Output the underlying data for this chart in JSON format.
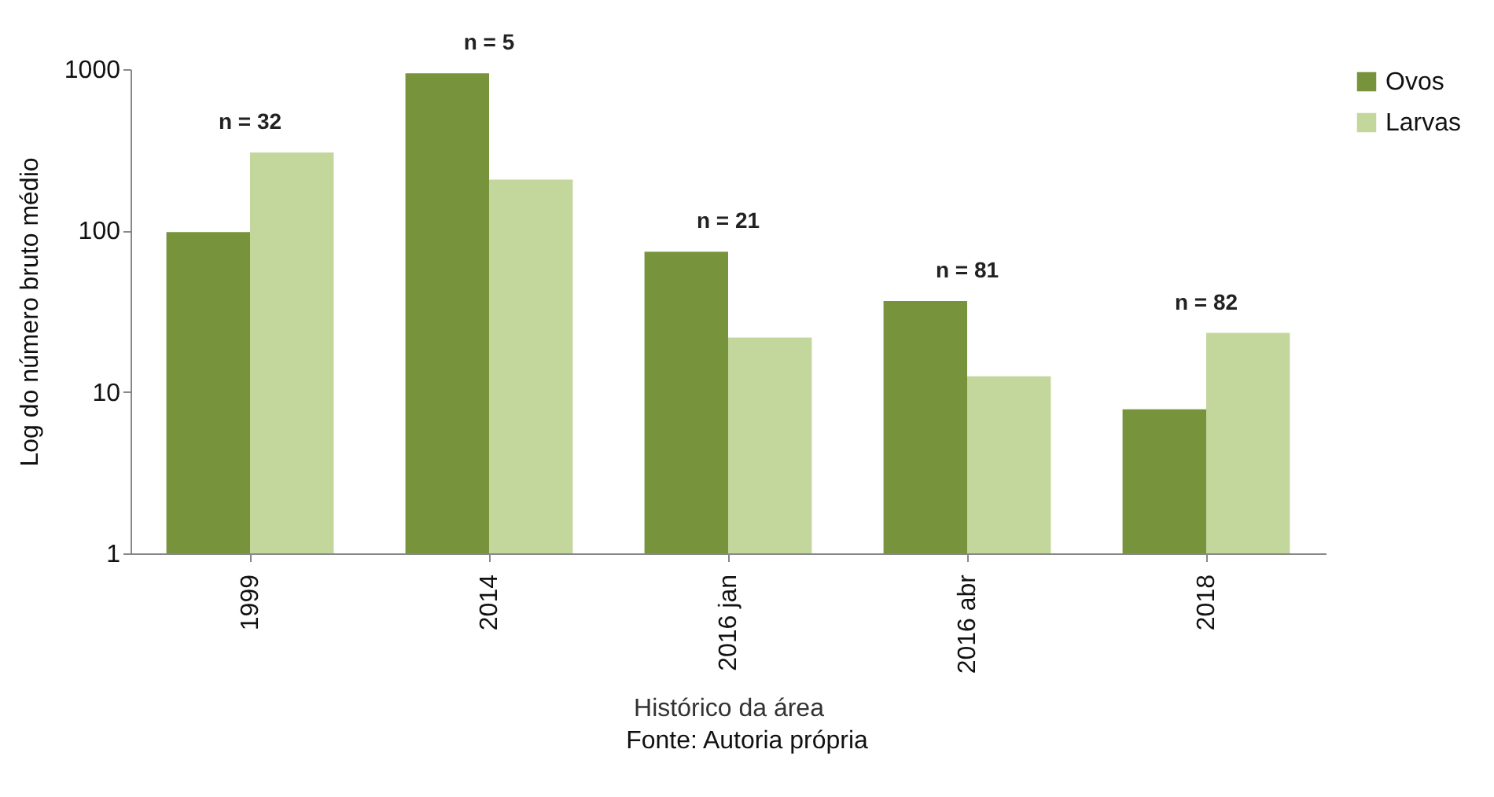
{
  "chart_data": {
    "type": "bar",
    "xlabel": "Histórico da área",
    "ylabel": "Log do número bruto médio",
    "categories": [
      "1999",
      "2014",
      "2016 jan",
      "2016 abr",
      "2018"
    ],
    "series": [
      {
        "name": "Ovos",
        "color": "#77933c",
        "values": [
          98,
          943,
          74,
          36.6,
          7.8
        ]
      },
      {
        "name": "Larvas",
        "color": "#c3d69b",
        "values": [
          305,
          207,
          21.7,
          12.5,
          23.2
        ]
      }
    ],
    "log": true,
    "ylim": [
      1,
      1000
    ],
    "yticks": [
      1,
      10,
      100,
      1000
    ],
    "grid": false,
    "legend": "right",
    "annotations": [
      "n = 32",
      "n = 5",
      "n = 21",
      "n = 81",
      "n = 82",
      "Fonte: Autoria própria"
    ]
  }
}
